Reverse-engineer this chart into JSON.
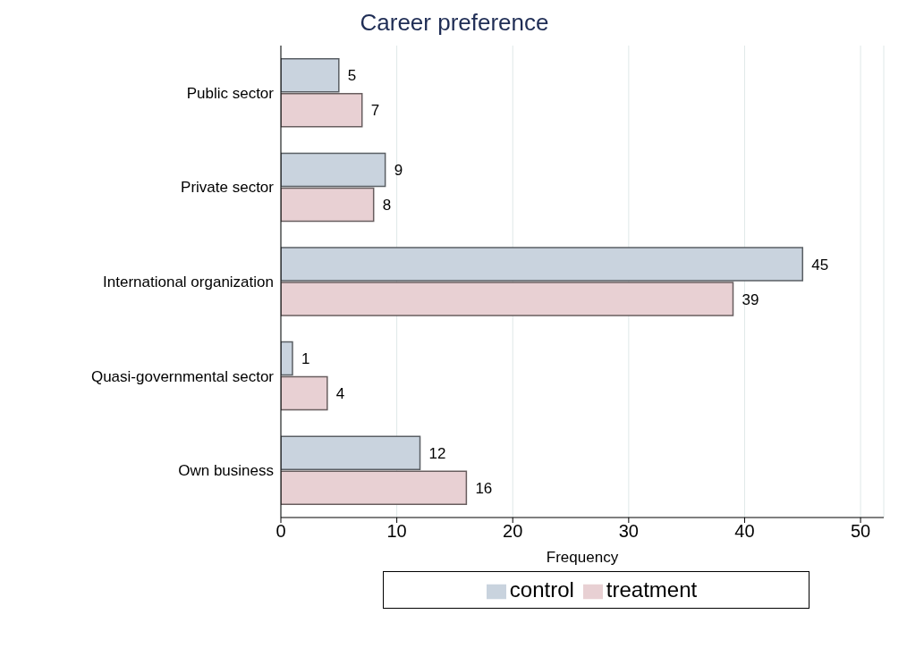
{
  "chart_data": {
    "type": "bar",
    "orientation": "horizontal",
    "title": "Career preference",
    "xlabel": "Frequency",
    "categories": [
      "Public sector",
      "Private sector",
      "International organization",
      "Quasi-governmental sector",
      "Own business"
    ],
    "series": [
      {
        "name": "control",
        "color": "#c9d3de",
        "values": [
          5,
          9,
          45,
          1,
          12
        ]
      },
      {
        "name": "treatment",
        "color": "#e8d0d3",
        "values": [
          7,
          8,
          39,
          4,
          16
        ]
      }
    ],
    "xlim": [
      0,
      52
    ],
    "xticks": [
      0,
      10,
      20,
      30,
      40,
      50
    ],
    "grid": "x",
    "legend": "bottom",
    "data_labels": true
  }
}
